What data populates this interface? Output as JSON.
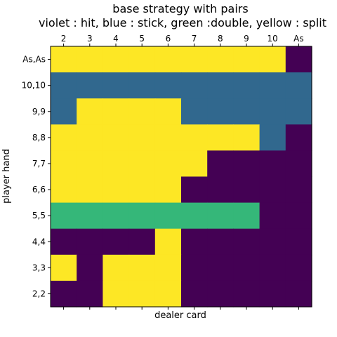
{
  "chart_data": {
    "type": "heatmap",
    "title": "base strategy with pairs",
    "subtitle": "violet : hit, blue : stick, green :double, yellow : split",
    "xlabel": "dealer card",
    "ylabel": "player hand",
    "x_categories": [
      "2",
      "3",
      "4",
      "5",
      "6",
      "7",
      "8",
      "9",
      "10",
      "As"
    ],
    "y_categories": [
      "As,As",
      "10,10",
      "9,9",
      "8,8",
      "7,7",
      "6,6",
      "5,5",
      "4,4",
      "3,3",
      "2,2"
    ],
    "x_ticks_position": "top",
    "colors": {
      "H": "#440154",
      "S": "#31688e",
      "D": "#35b779",
      "P": "#fde725"
    },
    "actions": {
      "H": "hit",
      "S": "stick",
      "D": "double",
      "P": "split"
    },
    "values": [
      [
        "P",
        "P",
        "P",
        "P",
        "P",
        "P",
        "P",
        "P",
        "P",
        "H"
      ],
      [
        "S",
        "S",
        "S",
        "S",
        "S",
        "S",
        "S",
        "S",
        "S",
        "S"
      ],
      [
        "S",
        "P",
        "P",
        "P",
        "P",
        "S",
        "S",
        "S",
        "S",
        "S"
      ],
      [
        "P",
        "P",
        "P",
        "P",
        "P",
        "P",
        "P",
        "P",
        "S",
        "H"
      ],
      [
        "P",
        "P",
        "P",
        "P",
        "P",
        "P",
        "H",
        "H",
        "H",
        "H"
      ],
      [
        "P",
        "P",
        "P",
        "P",
        "P",
        "H",
        "H",
        "H",
        "H",
        "H"
      ],
      [
        "D",
        "D",
        "D",
        "D",
        "D",
        "D",
        "D",
        "D",
        "H",
        "H"
      ],
      [
        "H",
        "H",
        "H",
        "H",
        "P",
        "H",
        "H",
        "H",
        "H",
        "H"
      ],
      [
        "P",
        "H",
        "P",
        "P",
        "P",
        "H",
        "H",
        "H",
        "H",
        "H"
      ],
      [
        "H",
        "H",
        "P",
        "P",
        "P",
        "H",
        "H",
        "H",
        "H",
        "H"
      ]
    ],
    "grid": false,
    "legend": "none"
  }
}
